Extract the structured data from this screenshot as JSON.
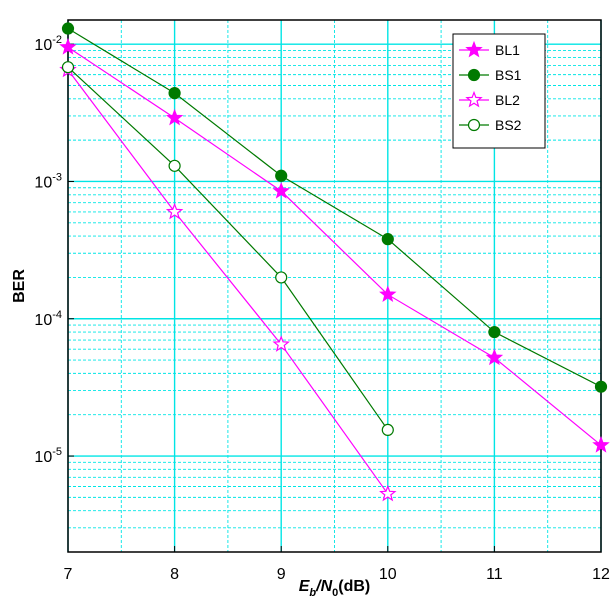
{
  "chart_data": {
    "type": "line",
    "title": "",
    "xlabel": {
      "main": "E",
      "sub1": "b",
      "mid": "/N",
      "sub2": "0",
      "tail": "(dB)"
    },
    "ylabel": "BER",
    "x_scale": "linear",
    "y_scale": "log",
    "xlim": [
      7,
      12
    ],
    "ylim": [
      2e-06,
      0.015
    ],
    "grid": true,
    "legend_position": "top-right",
    "x_ticks": [
      "7",
      "8",
      "9",
      "10",
      "11",
      "12"
    ],
    "y_ticks": [
      {
        "value": 0.01,
        "base": "10",
        "exp": "-2"
      },
      {
        "value": 0.001,
        "base": "10",
        "exp": "-3"
      },
      {
        "value": 0.0001,
        "base": "10",
        "exp": "-4"
      },
      {
        "value": 1e-05,
        "base": "10",
        "exp": "-5"
      }
    ],
    "series": [
      {
        "name": "BL1",
        "color": "#ff00ff",
        "marker": "star-filled",
        "x": [
          7,
          8,
          9,
          10,
          11,
          12
        ],
        "y": [
          0.0095,
          0.0029,
          0.00085,
          0.00015,
          5.2e-05,
          1.2e-05
        ]
      },
      {
        "name": "BS1",
        "color": "#007a00",
        "marker": "circle-filled",
        "x": [
          7,
          8,
          9,
          10,
          11,
          12
        ],
        "y": [
          0.013,
          0.0044,
          0.0011,
          0.00038,
          8e-05,
          3.2e-05
        ]
      },
      {
        "name": "BL2",
        "color": "#ff00ff",
        "marker": "star-open",
        "x": [
          7,
          8,
          9,
          10
        ],
        "y": [
          0.0065,
          0.0006,
          6.5e-05,
          5.3e-06
        ]
      },
      {
        "name": "BS2",
        "color": "#007a00",
        "marker": "circle-open",
        "x": [
          7,
          8,
          9,
          10
        ],
        "y": [
          0.0068,
          0.0013,
          0.0002,
          1.55e-05
        ]
      }
    ]
  }
}
